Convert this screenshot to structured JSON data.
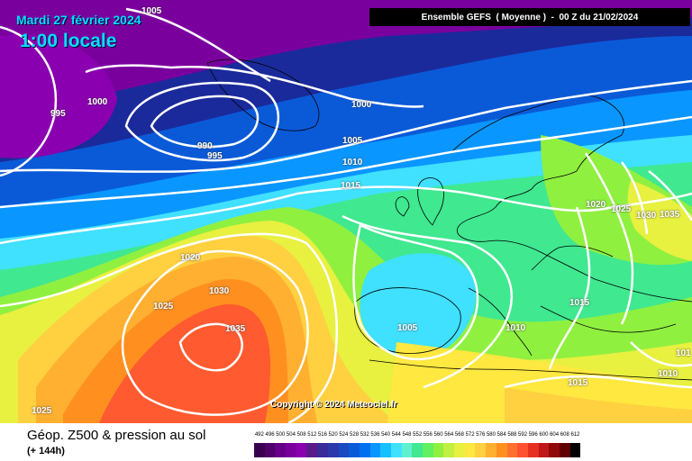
{
  "header": {
    "date": "Mardi 27 février 2024",
    "time": "1:00 locale",
    "model": "Ensemble GEFS  ( Moyenne )  -  00 Z du 21/02/2024"
  },
  "copyright": "Copyright © 2024 Meteociel.fr",
  "footer": {
    "title": "Géop. Z500 & pression au sol",
    "subtitle": "(+ 144h)"
  },
  "isobar_labels": [
    {
      "text": "1005"
    },
    {
      "text": "995"
    },
    {
      "text": "1000"
    },
    {
      "text": "990"
    },
    {
      "text": "995"
    },
    {
      "text": "1000"
    },
    {
      "text": "1005"
    },
    {
      "text": "1010"
    },
    {
      "text": "1015"
    },
    {
      "text": "1020"
    },
    {
      "text": "1030"
    },
    {
      "text": "1025"
    },
    {
      "text": "1035"
    },
    {
      "text": "1025"
    },
    {
      "text": "1005"
    },
    {
      "text": "1010"
    },
    {
      "text": "1015"
    },
    {
      "text": "1020"
    },
    {
      "text": "1025"
    },
    {
      "text": "1030"
    },
    {
      "text": "1035"
    },
    {
      "text": "1015"
    },
    {
      "text": "1010"
    },
    {
      "text": "101"
    }
  ],
  "scale": {
    "ticks": [
      "492",
      "496",
      "500",
      "504",
      "508",
      "512",
      "516",
      "520",
      "524",
      "528",
      "532",
      "536",
      "540",
      "544",
      "548",
      "552",
      "556",
      "560",
      "564",
      "568",
      "572",
      "576",
      "580",
      "584",
      "588",
      "592",
      "596",
      "600",
      "604",
      "608",
      "612"
    ],
    "colors": [
      "#3a0050",
      "#50006a",
      "#660088",
      "#7a009e",
      "#8a00b0",
      "#5a1a8a",
      "#3a2a9a",
      "#2a3aaa",
      "#1a4ac0",
      "#0a5ad8",
      "#0070f0",
      "#0a96ff",
      "#14c0ff",
      "#40e0ff",
      "#60f0d0",
      "#40e890",
      "#60f060",
      "#90f040",
      "#c0f040",
      "#e8f040",
      "#ffe840",
      "#ffd040",
      "#ffb030",
      "#ff9020",
      "#ff7030",
      "#ff5030",
      "#e83020",
      "#c01818",
      "#900808",
      "#600000",
      "#000000"
    ]
  },
  "colors": {
    "low_center": "#8a00b0",
    "high_center": "#ff5a30"
  }
}
